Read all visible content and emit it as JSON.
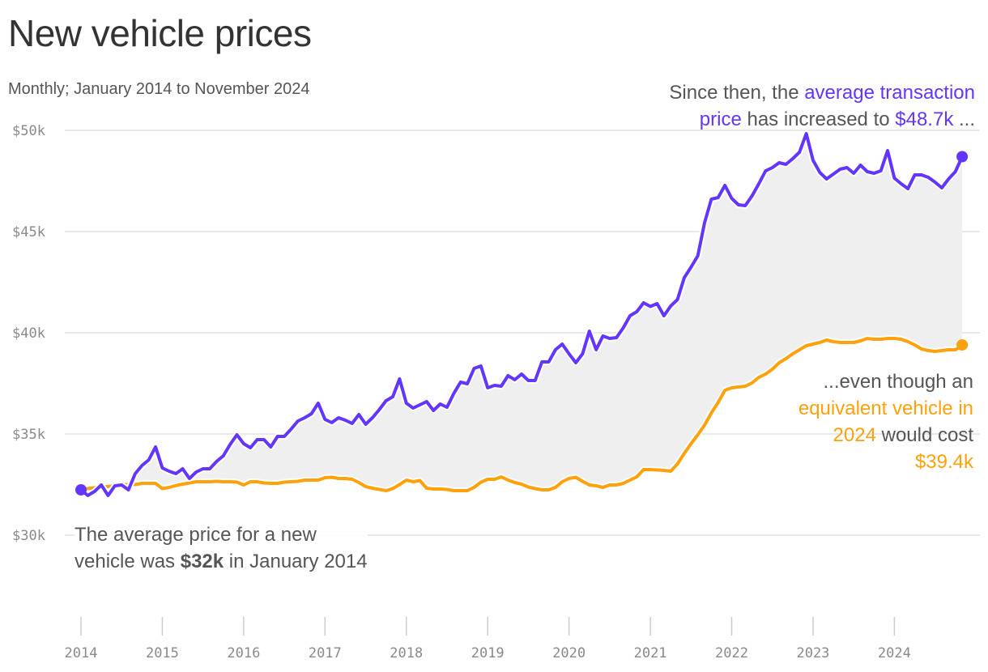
{
  "title": "New vehicle prices",
  "subtitle": "Monthly; January 2014 to November 2024",
  "annotations": {
    "top": [
      {
        "text": "Since then, the ",
        "style": "gray"
      },
      {
        "text": "average transaction",
        "style": "purple"
      },
      {
        "text": "price",
        "style": "purple",
        "break_before": true
      },
      {
        "text": " has increased to ",
        "style": "gray"
      },
      {
        "text": "$48.7k",
        "style": "purple"
      },
      {
        "text": " ...",
        "style": "gray"
      }
    ],
    "right": [
      {
        "text": "...even though an",
        "style": "gray"
      },
      {
        "text": "equivalent vehicle in",
        "style": "orange",
        "break_before": true
      },
      {
        "text": "2024",
        "style": "orange",
        "break_before": true
      },
      {
        "text": " would cost",
        "style": "gray"
      },
      {
        "text": "$39.4k",
        "style": "orange",
        "break_before": true
      }
    ],
    "left": [
      {
        "text": "The average price for a new",
        "style": "gray"
      },
      {
        "text": "vehicle was ",
        "style": "gray",
        "break_before": true
      },
      {
        "text": "$32k",
        "style": "bold"
      },
      {
        "text": " in January 2014",
        "style": "gray"
      }
    ]
  },
  "colors": {
    "average": "#6335ff",
    "inflation_adjusted": "#ffa10a",
    "fill": "#efefef",
    "grid": "#e2e2e2"
  },
  "chart_data": {
    "type": "line",
    "x_start": "2014-01",
    "x_end": "2024-11",
    "frequency": "monthly",
    "ylim": [
      30,
      50
    ],
    "y_unit": "$k",
    "y_ticks": [
      "$30k",
      "$35k",
      "$40k",
      "$45k",
      "$50k"
    ],
    "y_tick_values": [
      30,
      35,
      40,
      45,
      50
    ],
    "x_ticks": [
      "2014",
      "2015",
      "2016",
      "2017",
      "2018",
      "2019",
      "2020",
      "2021",
      "2022",
      "2023",
      "2024"
    ],
    "grid": true,
    "fill_between": true,
    "series": [
      {
        "key": "average",
        "values": [
          32.24,
          31.96,
          32.16,
          32.48,
          31.96,
          32.44,
          32.48,
          32.24,
          33.04,
          33.44,
          33.72,
          34.36,
          33.32,
          33.16,
          33.04,
          33.28,
          32.8,
          33.12,
          33.28,
          33.28,
          33.64,
          33.92,
          34.48,
          34.96,
          34.52,
          34.32,
          34.72,
          34.72,
          34.36,
          34.88,
          34.88,
          35.24,
          35.64,
          35.8,
          36.0,
          36.52,
          35.72,
          35.56,
          35.8,
          35.68,
          35.52,
          35.96,
          35.48,
          35.8,
          36.2,
          36.64,
          36.84,
          37.72,
          36.52,
          36.28,
          36.44,
          36.6,
          36.16,
          36.48,
          36.32,
          37.0,
          37.56,
          37.48,
          38.24,
          38.36,
          37.28,
          37.4,
          37.36,
          37.88,
          37.68,
          37.96,
          37.64,
          37.64,
          38.56,
          38.56,
          39.16,
          39.44,
          38.96,
          38.52,
          38.96,
          40.08,
          39.16,
          39.84,
          39.72,
          39.76,
          40.24,
          40.84,
          41.04,
          41.48,
          41.3,
          41.44,
          40.84,
          41.32,
          41.64,
          42.72,
          43.24,
          43.8,
          45.44,
          46.6,
          46.68,
          47.28,
          46.64,
          46.32,
          46.28,
          46.76,
          47.36,
          48.0,
          48.16,
          48.4,
          48.32,
          48.6,
          48.92,
          49.84,
          48.52,
          47.92,
          47.6,
          47.84,
          48.08,
          48.16,
          47.88,
          48.28,
          47.96,
          47.88,
          48.0,
          49.0,
          47.64,
          47.36,
          47.12,
          47.8,
          47.8,
          47.68,
          47.44,
          47.16,
          47.6,
          47.96,
          48.7
        ]
      },
      {
        "key": "inflation_adjusted",
        "values": [
          32.24,
          32.3,
          32.35,
          32.4,
          32.4,
          32.45,
          32.5,
          32.5,
          32.5,
          32.56,
          32.56,
          32.56,
          32.3,
          32.36,
          32.45,
          32.52,
          32.58,
          32.64,
          32.64,
          32.64,
          32.66,
          32.64,
          32.64,
          32.62,
          32.48,
          32.64,
          32.64,
          32.58,
          32.56,
          32.56,
          32.62,
          32.64,
          32.66,
          32.72,
          32.72,
          32.72,
          32.84,
          32.86,
          32.8,
          32.8,
          32.76,
          32.6,
          32.4,
          32.32,
          32.26,
          32.2,
          32.3,
          32.5,
          32.72,
          32.64,
          32.7,
          32.32,
          32.28,
          32.28,
          32.26,
          32.2,
          32.2,
          32.2,
          32.36,
          32.62,
          32.76,
          32.76,
          32.88,
          32.72,
          32.6,
          32.52,
          32.38,
          32.3,
          32.24,
          32.24,
          32.36,
          32.64,
          32.8,
          32.86,
          32.66,
          32.48,
          32.44,
          32.36,
          32.48,
          32.48,
          32.56,
          32.72,
          32.88,
          33.24,
          33.24,
          33.22,
          33.2,
          33.16,
          33.52,
          34.04,
          34.52,
          34.96,
          35.44,
          36.04,
          36.56,
          37.16,
          37.28,
          37.32,
          37.36,
          37.52,
          37.8,
          37.96,
          38.2,
          38.52,
          38.72,
          38.96,
          39.16,
          39.36,
          39.44,
          39.52,
          39.64,
          39.56,
          39.52,
          39.52,
          39.52,
          39.6,
          39.72,
          39.68,
          39.68,
          39.72,
          39.72,
          39.68,
          39.56,
          39.4,
          39.2,
          39.12,
          39.08,
          39.12,
          39.16,
          39.16,
          39.4
        ]
      }
    ]
  }
}
